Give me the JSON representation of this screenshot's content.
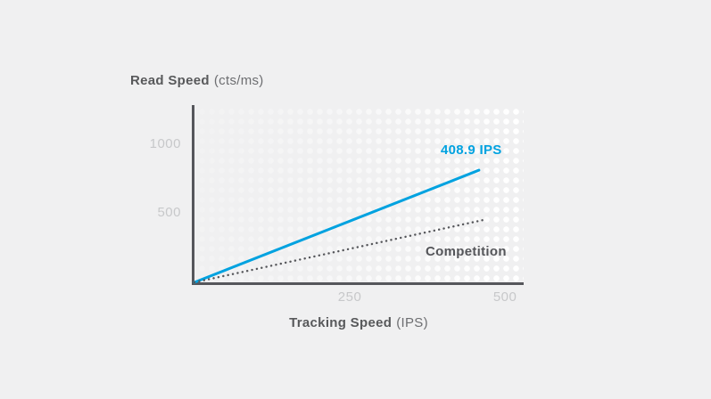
{
  "page": {
    "background_color": "#f0f0f1"
  },
  "colors": {
    "axis": "#55565b",
    "tick_label": "#c7c8ca",
    "axis_title": "#58595b",
    "hero_blue": "#00a2e0",
    "competition_gray": "#55565a",
    "grid_dot": "#ffffff"
  },
  "y_axis": {
    "title_main": "Read Speed",
    "title_unit": "(cts/ms)"
  },
  "x_axis": {
    "title_main": "Tracking Speed",
    "title_unit": "(IPS)"
  },
  "chart_data": {
    "type": "line",
    "title": "",
    "xlabel": "Tracking Speed (IPS)",
    "ylabel": "Read Speed (cts/ms)",
    "xlim": [
      0,
      530
    ],
    "ylim": [
      0,
      1280
    ],
    "x_ticks": [
      250,
      500
    ],
    "y_ticks": [
      500,
      1000
    ],
    "grid": "white dot-matrix pattern filling plot area, fading toward bottom-left",
    "legend_position": "inline labels next to lines",
    "series": [
      {
        "name": "408.9 IPS",
        "style": "solid",
        "color": "#00a2e0",
        "points": [
          [
            0,
            0
          ],
          [
            458,
            810
          ]
        ]
      },
      {
        "name": "Competition",
        "style": "dotted",
        "color": "#55565a",
        "points": [
          [
            0,
            0
          ],
          [
            470,
            455
          ]
        ]
      }
    ]
  }
}
